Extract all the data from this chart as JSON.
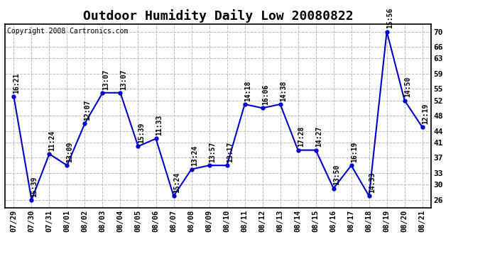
{
  "title": "Outdoor Humidity Daily Low 20080822",
  "copyright": "Copyright 2008 Cartronics.com",
  "x_labels": [
    "07/29",
    "07/30",
    "07/31",
    "08/01",
    "08/02",
    "08/03",
    "08/04",
    "08/05",
    "08/06",
    "08/07",
    "08/08",
    "08/09",
    "08/10",
    "08/11",
    "08/12",
    "08/13",
    "08/14",
    "08/15",
    "08/16",
    "08/17",
    "08/18",
    "08/19",
    "08/20",
    "08/21"
  ],
  "y_values": [
    53,
    26,
    38,
    35,
    46,
    54,
    54,
    40,
    42,
    27,
    34,
    35,
    35,
    51,
    50,
    51,
    39,
    39,
    29,
    35,
    27,
    70,
    52,
    45
  ],
  "point_labels": [
    "16:21",
    "15:39",
    "11:24",
    "13:09",
    "12:07",
    "13:07",
    "13:07",
    "15:39",
    "11:33",
    "15:24",
    "13:24",
    "13:57",
    "13:17",
    "14:18",
    "16:06",
    "14:38",
    "17:28",
    "14:27",
    "13:50",
    "16:19",
    "14:33",
    "15:56",
    "14:50",
    "12:19"
  ],
  "line_color": "#0000CC",
  "marker_color": "#0000CC",
  "background_color": "#ffffff",
  "grid_color": "#bbbbbb",
  "ylim": [
    24,
    72
  ],
  "yticks": [
    26,
    30,
    33,
    37,
    41,
    44,
    48,
    52,
    55,
    59,
    63,
    66,
    70
  ],
  "title_fontsize": 13,
  "label_fontsize": 7,
  "copyright_fontsize": 7,
  "xtick_fontsize": 7.5,
  "ytick_fontsize": 8
}
